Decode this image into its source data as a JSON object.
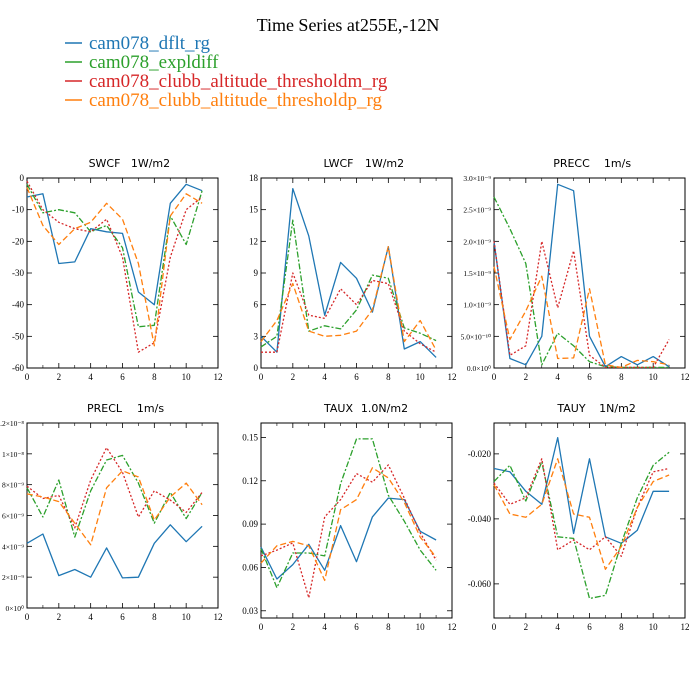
{
  "figure_title": "Time Series at255E,-12N",
  "legend": [
    {
      "label": "cam078_dflt_rg",
      "color": "#1f77b4"
    },
    {
      "label": "cam078_expldiff",
      "color": "#2ca02c"
    },
    {
      "label": "cam078_clubb_altitude_thresholdm_rg",
      "color": "#d62728"
    },
    {
      "label": "cam078_clubb_altitude_thresholdp_rg",
      "color": "#ff7f0e"
    }
  ],
  "chart_data": [
    {
      "type": "line",
      "title": "SWCF",
      "units": "1W/m2",
      "xlim": [
        0,
        12
      ],
      "xticks": [
        0,
        2,
        4,
        6,
        8,
        10,
        12
      ],
      "ylim": [
        -60,
        0
      ],
      "yticks": [
        0,
        -10,
        -20,
        -30,
        -40,
        -50,
        -60
      ],
      "ytick_labels": [
        "0",
        "-10",
        "-20",
        "-30",
        "-40",
        "-50",
        "-60"
      ],
      "x": [
        0,
        1,
        2,
        3,
        4,
        5,
        6,
        7,
        8,
        9,
        10,
        11
      ],
      "series": [
        {
          "name": "cam078_dflt_rg",
          "values": [
            -6,
            -5,
            -27,
            -26.5,
            -16,
            -17,
            -17.5,
            -36,
            -40,
            -8,
            -2,
            -4
          ]
        },
        {
          "name": "cam078_expldiff",
          "values": [
            -2,
            -11,
            -10,
            -11,
            -17,
            -15,
            -22,
            -47,
            -46.5,
            -12,
            -21,
            -4
          ]
        },
        {
          "name": "cam078_clubb_altitude_thresholdm_rg",
          "values": [
            -1,
            -10,
            -14,
            -16,
            -17,
            -13,
            -25,
            -55,
            -52,
            -25,
            -10,
            -6
          ]
        },
        {
          "name": "cam078_clubb_altitude_thresholdp_rg",
          "values": [
            -3,
            -15,
            -21,
            -16,
            -14,
            -8,
            -13,
            -27,
            -53,
            -12,
            -5,
            -8
          ]
        }
      ]
    },
    {
      "type": "line",
      "title": "LWCF",
      "units": "1W/m2",
      "xlim": [
        0,
        12
      ],
      "xticks": [
        0,
        2,
        4,
        6,
        8,
        10,
        12
      ],
      "ylim": [
        0,
        18
      ],
      "yticks": [
        0,
        3,
        6,
        9,
        12,
        15,
        18
      ],
      "ytick_labels": [
        "0",
        "3",
        "6",
        "9",
        "12",
        "15",
        "18"
      ],
      "x": [
        0,
        1,
        2,
        3,
        4,
        5,
        6,
        7,
        8,
        9,
        10,
        11
      ],
      "series": [
        {
          "name": "cam078_dflt_rg",
          "values": [
            3,
            1.5,
            17,
            12.5,
            5,
            10,
            8.5,
            5.3,
            11.5,
            1.8,
            2.5,
            1
          ]
        },
        {
          "name": "cam078_expldiff",
          "values": [
            2,
            3,
            14,
            3.5,
            4,
            3.7,
            5.5,
            8.8,
            8.5,
            3.8,
            3.3,
            2.6
          ]
        },
        {
          "name": "cam078_clubb_altitude_thresholdm_rg",
          "values": [
            1.5,
            1.5,
            9,
            5,
            4.7,
            7.5,
            6,
            8.3,
            8,
            3.5,
            2.3,
            1.5
          ]
        },
        {
          "name": "cam078_clubb_altitude_thresholdp_rg",
          "values": [
            2.5,
            4.5,
            8,
            3.5,
            3,
            3.1,
            3.5,
            5.5,
            11.5,
            2.5,
            4.5,
            1.7
          ]
        }
      ]
    },
    {
      "type": "line",
      "title": "PRECC",
      "units": "1m/s",
      "xlim": [
        0,
        12
      ],
      "xticks": [
        0,
        2,
        4,
        6,
        8,
        10,
        12
      ],
      "ylim": [
        0,
        3e-09
      ],
      "yticks": [
        0,
        5e-10,
        1e-09,
        1.5e-09,
        2e-09,
        2.5e-09,
        3e-09
      ],
      "ytick_labels": [
        "0.0×10⁰",
        "5.0×10⁻¹⁰",
        "1.0×10⁻⁹",
        "1.5×10⁻⁹",
        "2.0×10⁻⁹",
        "2.5×10⁻⁹",
        "3.0×10⁻⁹"
      ],
      "x": [
        0,
        1,
        2,
        3,
        4,
        5,
        6,
        7,
        8,
        9,
        10,
        11
      ],
      "series": [
        {
          "name": "cam078_dflt_rg",
          "values": [
            2e-09,
            1.5e-10,
            5e-11,
            5e-10,
            2.9e-09,
            2.8e-09,
            5e-10,
            2e-11,
            1.8e-10,
            5e-11,
            1.8e-10,
            2e-11
          ]
        },
        {
          "name": "cam078_expldiff",
          "values": [
            2.7e-09,
            2.2e-09,
            1.65e-09,
            5e-11,
            5.5e-10,
            3.5e-10,
            1e-10,
            2e-11,
            1e-11,
            1e-11,
            1e-11,
            1e-11
          ]
        },
        {
          "name": "cam078_clubb_altitude_thresholdm_rg",
          "values": [
            2e-09,
            2e-10,
            3.5e-10,
            2e-09,
            9.5e-10,
            1.85e-09,
            2e-10,
            1e-11,
            1e-11,
            1e-11,
            1e-11,
            4.5e-10
          ]
        },
        {
          "name": "cam078_clubb_altitude_thresholdp_rg",
          "values": [
            1.6e-09,
            4.5e-10,
            9e-10,
            1.45e-09,
            1.5e-10,
            1.6e-10,
            1.25e-09,
            5e-11,
            1e-11,
            1.2e-10,
            1e-10,
            5e-11
          ]
        }
      ]
    },
    {
      "type": "line",
      "title": "PRECL",
      "units": "1m/s",
      "xlim": [
        0,
        12
      ],
      "xticks": [
        0,
        2,
        4,
        6,
        8,
        10,
        12
      ],
      "ylim": [
        0,
        1.2e-08
      ],
      "yticks": [
        0,
        2e-09,
        4e-09,
        6e-09,
        8e-09,
        1e-08,
        1.2e-08
      ],
      "ytick_labels": [
        "0×10⁰",
        "2×10⁻⁹",
        "4×10⁻⁹",
        "6×10⁻⁹",
        "8×10⁻⁹",
        "1×10⁻⁸",
        "1.2×10⁻⁸"
      ],
      "x": [
        0,
        1,
        2,
        3,
        4,
        5,
        6,
        7,
        8,
        9,
        10,
        11
      ],
      "series": [
        {
          "name": "cam078_dflt_rg",
          "values": [
            4.2e-09,
            4.8e-09,
            2.1e-09,
            2.5e-09,
            2e-09,
            3.9e-09,
            1.95e-09,
            2e-09,
            4.2e-09,
            5.4e-09,
            4.3e-09,
            5.3e-09
          ]
        },
        {
          "name": "cam078_expldiff",
          "values": [
            7.8e-09,
            5.9e-09,
            8.3e-09,
            4.6e-09,
            7.6e-09,
            9.6e-09,
            9.9e-09,
            8.1e-09,
            5.5e-09,
            7.5e-09,
            5.8e-09,
            7.5e-09
          ]
        },
        {
          "name": "cam078_clubb_altitude_thresholdm_rg",
          "values": [
            7.9e-09,
            7.1e-09,
            7.3e-09,
            5.2e-09,
            8.3e-09,
            1.04e-08,
            8.8e-09,
            5.9e-09,
            7.6e-09,
            7e-09,
            6.2e-09,
            7.5e-09
          ]
        },
        {
          "name": "cam078_clubb_altitude_thresholdp_rg",
          "values": [
            7.4e-09,
            7.2e-09,
            6.9e-09,
            5.5e-09,
            4.1e-09,
            7.8e-09,
            8.9e-09,
            8.5e-09,
            5.7e-09,
            7.2e-09,
            8.1e-09,
            6.7e-09
          ]
        }
      ]
    },
    {
      "type": "line",
      "title": "TAUX",
      "units": "1.0N/m2",
      "xlim": [
        0,
        12
      ],
      "xticks": [
        0,
        2,
        4,
        6,
        8,
        10,
        12
      ],
      "ylim": [
        0.025,
        0.16
      ],
      "yticks": [
        0.03,
        0.06,
        0.09,
        0.12,
        0.15
      ],
      "ytick_labels": [
        "0.03",
        "0.06",
        "0.09",
        "0.12",
        "0.15"
      ],
      "x": [
        0,
        1,
        2,
        3,
        4,
        5,
        6,
        7,
        8,
        9,
        10,
        11
      ],
      "series": [
        {
          "name": "cam078_dflt_rg",
          "values": [
            0.074,
            0.052,
            0.062,
            0.076,
            0.058,
            0.089,
            0.064,
            0.095,
            0.108,
            0.107,
            0.085,
            0.079
          ]
        },
        {
          "name": "cam078_expldiff",
          "values": [
            0.073,
            0.046,
            0.07,
            0.07,
            0.068,
            0.118,
            0.149,
            0.149,
            0.11,
            0.092,
            0.072,
            0.058
          ]
        },
        {
          "name": "cam078_clubb_altitude_thresholdm_rg",
          "values": [
            0.068,
            0.072,
            0.077,
            0.039,
            0.095,
            0.107,
            0.125,
            0.119,
            0.131,
            0.108,
            0.084,
            0.065
          ]
        },
        {
          "name": "cam078_clubb_altitude_thresholdp_rg",
          "values": [
            0.063,
            0.075,
            0.078,
            0.075,
            0.051,
            0.1,
            0.107,
            0.129,
            0.122,
            0.105,
            0.081,
            0.067
          ]
        }
      ]
    },
    {
      "type": "line",
      "title": "TAUY",
      "units": "1N/m2",
      "xlim": [
        0,
        12
      ],
      "xticks": [
        0,
        2,
        4,
        6,
        8,
        10,
        12
      ],
      "ylim": [
        -0.0705,
        -0.0105
      ],
      "yticks": [
        -0.02,
        -0.04,
        -0.06
      ],
      "ytick_labels": [
        "-0.020",
        "-0.040",
        "-0.060"
      ],
      "x": [
        0,
        1,
        2,
        3,
        4,
        5,
        6,
        7,
        8,
        9,
        10,
        11
      ],
      "series": [
        {
          "name": "cam078_dflt_rg",
          "values": [
            -0.0245,
            -0.0255,
            -0.0315,
            -0.0355,
            -0.015,
            -0.0445,
            -0.0215,
            -0.0455,
            -0.0475,
            -0.0435,
            -0.0315,
            -0.0315
          ]
        },
        {
          "name": "cam078_expldiff",
          "values": [
            -0.0285,
            -0.0235,
            -0.0345,
            -0.0225,
            -0.0455,
            -0.046,
            -0.0645,
            -0.0635,
            -0.0475,
            -0.0335,
            -0.0235,
            -0.0195
          ]
        },
        {
          "name": "cam078_clubb_altitude_thresholdm_rg",
          "values": [
            -0.029,
            -0.0355,
            -0.0335,
            -0.0215,
            -0.0495,
            -0.0465,
            -0.0495,
            -0.0455,
            -0.0515,
            -0.0365,
            -0.0255,
            -0.0245
          ]
        },
        {
          "name": "cam078_clubb_altitude_thresholdp_rg",
          "values": [
            -0.0295,
            -0.0385,
            -0.0395,
            -0.0355,
            -0.0215,
            -0.0385,
            -0.0395,
            -0.0555,
            -0.0485,
            -0.0365,
            -0.0285,
            -0.0265
          ]
        }
      ]
    }
  ]
}
